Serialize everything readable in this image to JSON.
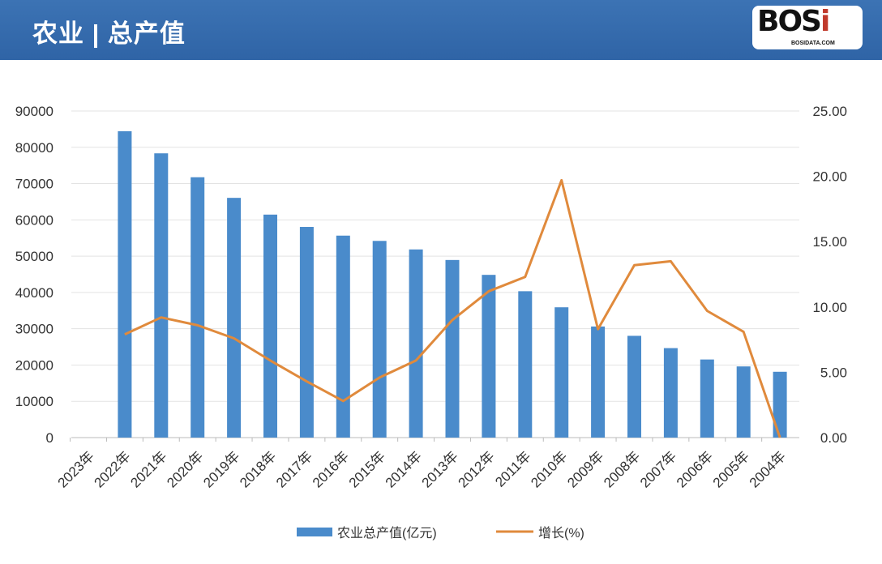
{
  "header": {
    "title": "农业 | 总产值",
    "logo_text": "BOSi",
    "logo_sub": "BOSIDATA.COM"
  },
  "colors": {
    "bar": "#4a8bcb",
    "line": "#e08a3c",
    "header": "#3469aa"
  },
  "chart_data": {
    "type": "bar",
    "title": "农业 | 总产值",
    "categories": [
      "2023年",
      "2022年",
      "2021年",
      "2020年",
      "2019年",
      "2018年",
      "2017年",
      "2016年",
      "2015年",
      "2014年",
      "2013年",
      "2012年",
      "2011年",
      "2010年",
      "2009年",
      "2008年",
      "2007年",
      "2006年",
      "2005年",
      "2004年"
    ],
    "series": [
      {
        "name": "农业总产值(亿元)",
        "type": "bar",
        "axis": "left",
        "values": [
          null,
          84439,
          78340,
          71748,
          66066,
          61453,
          58060,
          55660,
          54205,
          51851,
          48943,
          44846,
          40339,
          35909,
          30611,
          28044,
          24658,
          21523,
          19613,
          18138
        ]
      },
      {
        "name": "增长(%)",
        "type": "line",
        "axis": "right",
        "values": [
          null,
          7.9,
          9.2,
          8.6,
          7.6,
          5.9,
          4.3,
          2.8,
          4.6,
          5.9,
          9.0,
          11.2,
          12.3,
          19.7,
          8.3,
          13.2,
          13.5,
          9.7,
          8.1,
          0.0
        ]
      }
    ],
    "y_left": {
      "min": 0,
      "max": 90000,
      "ticks": [
        "0",
        "10000",
        "20000",
        "30000",
        "40000",
        "50000",
        "60000",
        "70000",
        "80000",
        "90000"
      ]
    },
    "y_right": {
      "min": 0,
      "max": 25,
      "ticks": [
        "0.00",
        "5.00",
        "10.00",
        "15.00",
        "20.00",
        "25.00"
      ]
    },
    "grid": true,
    "legend": {
      "placement": "bottom",
      "items": [
        "农业总产值(亿元)",
        "增长(%)"
      ]
    }
  }
}
